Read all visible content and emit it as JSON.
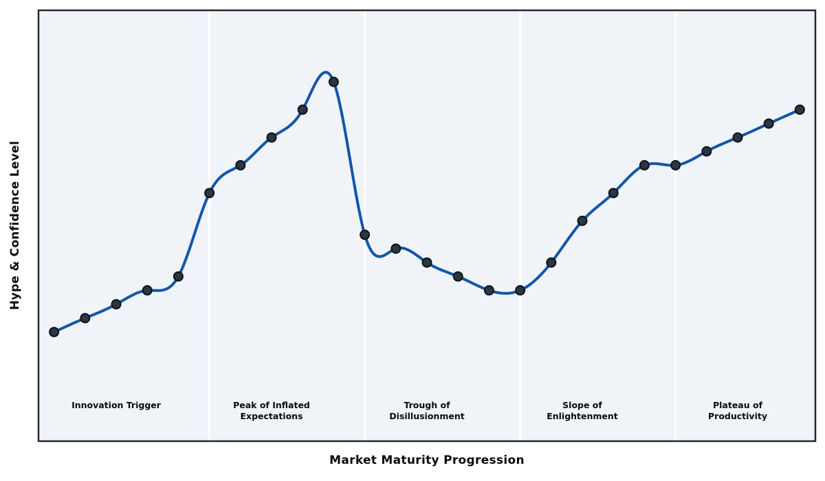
{
  "chart_data": {
    "type": "line",
    "title": "",
    "xlabel": "Market Maturity Progression",
    "ylabel": "Hype & Confidence Level",
    "x": [
      0,
      1,
      2,
      3,
      4,
      5,
      6,
      7,
      8,
      9,
      10,
      11,
      12,
      13,
      14,
      15,
      16,
      17,
      18,
      19,
      20,
      21,
      22,
      23,
      24
    ],
    "values": [
      10,
      12,
      14,
      16,
      18,
      30,
      34,
      38,
      42,
      46,
      24,
      22,
      20,
      18,
      16,
      16,
      20,
      26,
      30,
      34,
      34,
      36,
      38,
      40,
      42
    ],
    "xlim": [
      -0.5,
      24.5
    ],
    "ylim": [
      -5.7,
      56.3
    ],
    "grid": false,
    "legend": false,
    "ticks": "none",
    "smoothing": "natural-cubic-spline",
    "phase_boundaries_x": [
      5,
      10,
      15,
      20
    ],
    "phases": [
      {
        "label": "Innovation Trigger",
        "label_x": 2
      },
      {
        "label": "Peak of Inflated\nExpectations",
        "label_x": 7
      },
      {
        "label": "Trough of\nDisillusionment",
        "label_x": 12
      },
      {
        "label": "Slope of\nEnlightenment",
        "label_x": 17
      },
      {
        "label": "Plateau of\nProductivity",
        "label_x": 22
      }
    ],
    "colors": {
      "line": "#1257a8",
      "marker_fill": "#2b3642",
      "marker_edge": "#0d1117",
      "plot_background": "#f0f3f8",
      "phase_divider": "#ffffff",
      "spine": "#24282d",
      "label_text": "#0b0b0b"
    }
  }
}
